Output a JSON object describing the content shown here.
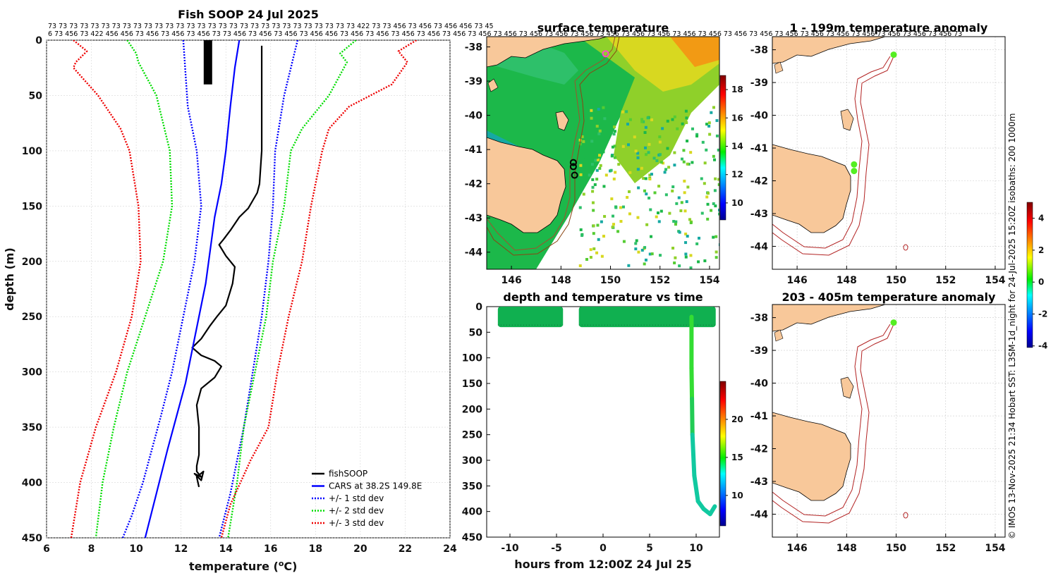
{
  "chart_data": [
    {
      "type": "line",
      "title": "Fish SOOP 24 Jul 2025",
      "xlabel": "temperature (°C)",
      "ylabel": "depth (m)",
      "xlim": [
        6,
        24
      ],
      "ylim": [
        0,
        450
      ],
      "y_reversed": true,
      "xticks": [
        6,
        8,
        10,
        12,
        14,
        16,
        18,
        20,
        22,
        24
      ],
      "yticks": [
        0,
        50,
        100,
        150,
        200,
        250,
        300,
        350,
        400,
        450
      ],
      "depth_strip_top": "73 73 73 73 73 73 73 73 73 73 73 73 73 73 73 73 73 73 73 73 73 73 73 73 73 73 73 73 73 422 73 73 456 73 456 73 456 456 73 45",
      "depth_strip_bottom": "6 73 456 73 422 456 456 73 456 73 456 73 456 73 73 456 73 456 73 456 73 456 456 73 456 73 456 73 456 73 456 73 456 73 456 73 456 73 456 73 456 73 456 73 456 73 456 73 456 73 456 73 456 73 456 73 456 73 456 73 456 73 456 73 456 73 456 73 456 73 456 73",
      "series": [
        {
          "name": "fishSOOP",
          "color": "#000000",
          "style": "solid",
          "x": [
            15.6,
            15.6,
            15.6,
            15.5,
            15.4,
            15.2,
            15.0,
            14.6,
            14.2,
            13.9,
            13.7,
            14.0,
            14.4,
            14.3,
            14.0,
            13.6,
            13.3,
            12.9,
            12.5,
            12.9,
            13.5,
            13.8,
            13.5,
            12.9,
            12.7,
            12.8,
            12.8,
            12.7,
            12.7,
            12.9,
            12.6,
            12.9,
            13.0,
            12.7,
            12.8
          ],
          "y": [
            5,
            50,
            100,
            130,
            138,
            145,
            152,
            160,
            172,
            180,
            185,
            195,
            205,
            220,
            240,
            250,
            258,
            270,
            278,
            285,
            290,
            295,
            305,
            315,
            330,
            350,
            375,
            385,
            390,
            395,
            392,
            398,
            390,
            395,
            404
          ]
        },
        {
          "name": "fishSOOP surface",
          "color": "#000000",
          "style": "thick",
          "x": [
            13.2,
            13.2
          ],
          "y": [
            0,
            40
          ]
        },
        {
          "name": "CARS at 38.2S 149.8E",
          "color": "#0000ff",
          "style": "solid",
          "x": [
            14.6,
            14.4,
            14.2,
            14.0,
            13.8,
            13.5,
            13.3,
            13.1,
            12.8,
            12.5,
            12.2,
            11.8,
            11.4,
            10.9,
            10.4
          ],
          "y": [
            0,
            25,
            60,
            100,
            130,
            160,
            190,
            220,
            250,
            280,
            310,
            340,
            370,
            410,
            450
          ]
        },
        {
          "name": "+/- 1 std dev",
          "color": "#0000ff",
          "style": "dotted",
          "x": [
            12.1,
            12.3,
            12.7,
            12.9,
            12.6,
            12.1,
            11.6,
            11.1,
            10.7,
            10.3,
            9.8,
            9.4
          ],
          "y": [
            0,
            60,
            100,
            150,
            200,
            250,
            300,
            340,
            370,
            400,
            430,
            450
          ]
        },
        {
          "name": "+/- 1 std dev",
          "color": "#0000ff",
          "style": "dotted",
          "x": [
            17.2,
            16.6,
            16.2,
            16.1,
            15.9,
            15.6,
            15.2,
            14.8,
            14.5,
            14.2,
            13.7
          ],
          "y": [
            0,
            50,
            100,
            150,
            200,
            250,
            300,
            350,
            380,
            410,
            450
          ]
        },
        {
          "name": "+/- 2 std dev",
          "color": "#00dd00",
          "style": "dotted",
          "x": [
            9.6,
            10.0,
            10.1,
            10.9,
            11.5,
            11.6,
            11.2,
            10.4,
            9.6,
            9.0,
            8.5,
            8.2
          ],
          "y": [
            0,
            12,
            20,
            50,
            100,
            150,
            200,
            250,
            300,
            350,
            400,
            450
          ]
        },
        {
          "name": "+/- 2 std dev",
          "color": "#00dd00",
          "style": "dotted",
          "x": [
            19.8,
            19.1,
            19.4,
            18.6,
            17.4,
            16.9,
            16.6,
            16.1,
            15.8,
            15.3,
            14.8,
            14.5,
            14.1
          ],
          "y": [
            0,
            12,
            20,
            50,
            80,
            100,
            150,
            200,
            250,
            300,
            350,
            400,
            450
          ]
        },
        {
          "name": "+/- 3 std dev",
          "color": "#ee0000",
          "style": "dotted",
          "x": [
            7.2,
            7.8,
            7.3,
            7.2,
            8.3,
            9.3,
            9.7,
            10.1,
            10.2,
            9.8,
            9.1,
            8.2,
            7.5,
            7.1
          ],
          "y": [
            0,
            10,
            20,
            25,
            50,
            80,
            100,
            150,
            200,
            250,
            300,
            350,
            400,
            450
          ]
        },
        {
          "name": "+/- 3 std dev",
          "color": "#ee0000",
          "style": "dotted",
          "x": [
            22.5,
            21.7,
            22.1,
            21.4,
            19.5,
            18.6,
            18.3,
            17.8,
            17.4,
            16.8,
            16.3,
            15.9,
            15.1,
            14.2,
            13.8
          ],
          "y": [
            0,
            10,
            20,
            40,
            60,
            80,
            100,
            150,
            200,
            250,
            300,
            350,
            380,
            420,
            450
          ]
        }
      ],
      "legend": [
        "fishSOOP",
        "CARS at 38.2S 149.8E",
        "+/- 1 std dev",
        "+/- 2 std dev",
        "+/- 3 std dev"
      ],
      "legend_position": "bottom-right"
    },
    {
      "type": "heatmap",
      "title": "surface temperature",
      "xlim": [
        145,
        154.4
      ],
      "ylim": [
        -44.5,
        -37.7
      ],
      "xticks": [
        146,
        148,
        150,
        152,
        154
      ],
      "yticks": [
        -38,
        -39,
        -40,
        -41,
        -42,
        -43,
        -44
      ],
      "colorbar_ticks": [
        10,
        12,
        14,
        16,
        18
      ],
      "colorbar_range": [
        8.8,
        19
      ],
      "tracks": [
        {
          "name": "fisher positions",
          "color": "#000000",
          "lon": [
            148.5,
            148.5,
            148.55
          ],
          "lat": [
            -41.5,
            -41.38,
            -41.75
          ]
        },
        {
          "name": "CARS location",
          "color": "#ff44cc",
          "lon": [
            149.8
          ],
          "lat": [
            -38.2
          ]
        }
      ]
    },
    {
      "type": "scatter",
      "title": "depth and temperature vs time",
      "xlabel": "hours from 12:00Z 24 Jul 25",
      "xlim": [
        -12.5,
        12.5
      ],
      "ylim": [
        0,
        450
      ],
      "y_reversed": true,
      "xticks": [
        -10,
        -5,
        0,
        5,
        10
      ],
      "yticks": [
        0,
        50,
        100,
        150,
        200,
        250,
        300,
        350,
        400,
        450
      ],
      "colorbar_ticks": [
        10,
        15,
        20
      ],
      "colorbar_range": [
        6,
        25
      ],
      "segments": [
        {
          "t_start": -11.3,
          "t_end": -4.3,
          "depth_min": 0,
          "depth_max": 40,
          "temp": 13.8
        },
        {
          "t_start": -2.6,
          "t_end": 12.1,
          "depth_min": 0,
          "depth_max": 40,
          "temp": 13.8
        }
      ],
      "profile": {
        "t": [
          9.5,
          9.5,
          9.55,
          9.6,
          9.8,
          10.2,
          10.8,
          11.5,
          12.0
        ],
        "depth": [
          20,
          120,
          180,
          250,
          330,
          380,
          395,
          405,
          390
        ],
        "temp": [
          14.5,
          14.2,
          13.9,
          13.0,
          12.6,
          12.3,
          12.6,
          12.8,
          12.9
        ]
      }
    },
    {
      "type": "heatmap",
      "title": "1 - 199m temperature anomaly",
      "xlim": [
        145,
        154.4
      ],
      "ylim": [
        -44.7,
        -37.6
      ],
      "xticks": [
        146,
        148,
        150,
        152,
        154
      ],
      "yticks": [
        -38,
        -39,
        -40,
        -41,
        -42,
        -43,
        -44
      ],
      "points": [
        {
          "lon": 149.9,
          "lat": -38.15,
          "anomaly": 0.6
        },
        {
          "lon": 148.3,
          "lat": -41.5,
          "anomaly": 0.3
        },
        {
          "lon": 148.3,
          "lat": -41.7,
          "anomaly": 0.3
        }
      ]
    },
    {
      "type": "heatmap",
      "title": "203 - 405m temperature anomaly",
      "xlim": [
        145,
        154.4
      ],
      "ylim": [
        -44.7,
        -37.6
      ],
      "xticks": [
        146,
        148,
        150,
        152,
        154
      ],
      "yticks": [
        -38,
        -39,
        -40,
        -41,
        -42,
        -43,
        -44
      ],
      "points": [
        {
          "lon": 149.9,
          "lat": -38.15,
          "anomaly": 0.6
        }
      ]
    },
    {
      "type": "colorbar",
      "name": "anomaly colorbar",
      "range": [
        -4.1,
        5
      ],
      "ticks": [
        -4,
        -2,
        0,
        2,
        4
      ]
    }
  ],
  "footer": "© IMOS 13-Nov-2025 21:34 Hobart SST: L3SM-1d_night for 24-Jul-2025 15:20Z isobaths: 200  1000m",
  "colors": {
    "land": "#f8c89a",
    "contour": "#b22222",
    "grid": "#cccccc"
  }
}
